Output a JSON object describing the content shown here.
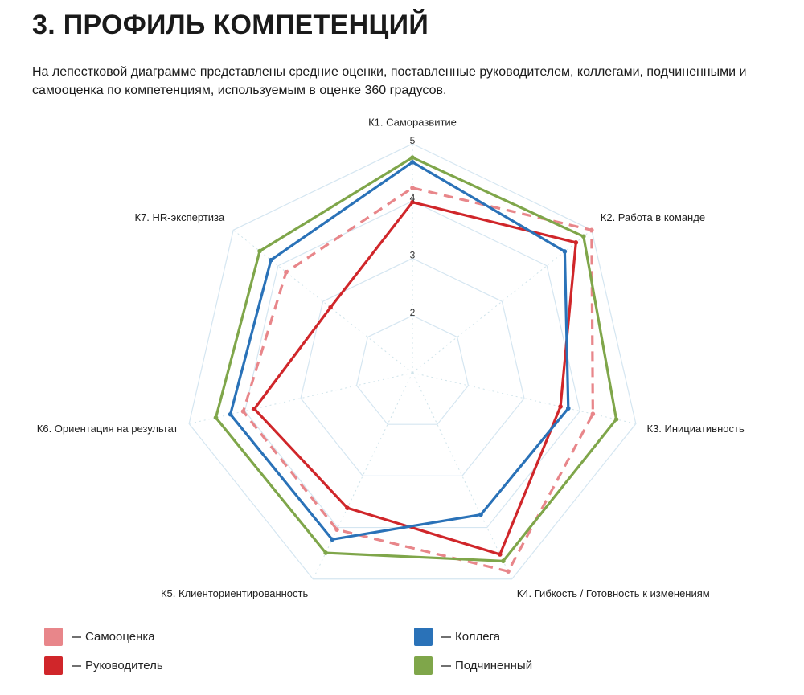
{
  "chart_data": {
    "type": "radar",
    "title": "3. ПРОФИЛЬ КОМПЕТЕНЦИЙ",
    "subtitle": "На лепестковой диаграмме представлены средние оценки, поставленные руководителем, коллегами, подчиненными и самооценка по компетенциям, используемым в оценке 360 градусов.",
    "categories": [
      "К1. Саморазвитие",
      "К2. Работа в команде",
      "К3. Инициативность",
      "К4. Гибкость / Готовность к изменениям",
      "К5. Клиенториентированность",
      "К6. Ориентация на результат",
      "К7. HR-экспертиза"
    ],
    "rlim": [
      1,
      5
    ],
    "rticks": [
      2,
      3,
      4,
      5
    ],
    "series": [
      {
        "name": "Самооценка",
        "color": "#e8868a",
        "line_style": "dashed",
        "values": [
          4.23,
          5.0,
          4.23,
          4.85,
          4.04,
          4.03,
          3.82
        ]
      },
      {
        "name": "Руководитель",
        "color": "#d0262a",
        "line_style": "solid",
        "values": [
          3.98,
          4.65,
          3.65,
          4.52,
          3.62,
          3.83,
          2.83
        ]
      },
      {
        "name": "Коллега",
        "color": "#2a72b8",
        "line_style": "solid",
        "values": [
          4.68,
          4.4,
          3.79,
          3.75,
          4.23,
          4.26,
          4.16
        ]
      },
      {
        "name": "Подчиненный",
        "color": "#7fa64a",
        "line_style": "solid",
        "values": [
          4.76,
          4.82,
          4.65,
          4.65,
          4.49,
          4.52,
          4.41
        ]
      }
    ]
  }
}
